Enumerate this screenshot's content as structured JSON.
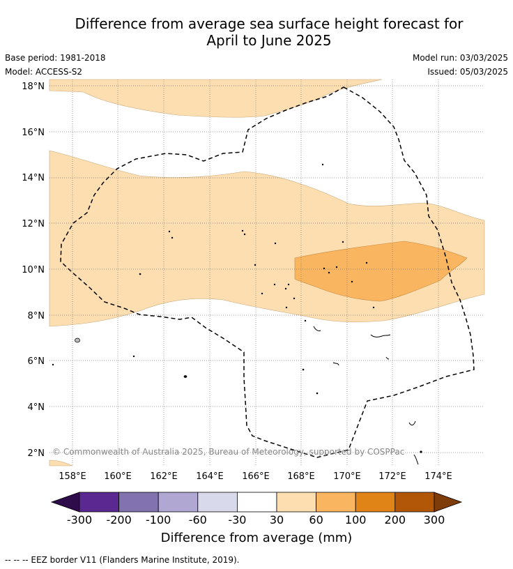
{
  "title": {
    "line1": "Difference from average sea surface height forecast for",
    "line2": "April to June 2025"
  },
  "meta": {
    "base_period": "Base period: 1981-2018",
    "model": "Model: ACCESS-S2",
    "model_run": "Model run: 03/03/2025",
    "issued": "Issued: 05/03/2025"
  },
  "map": {
    "lat_labels": [
      "18°N",
      "16°N",
      "14°N",
      "12°N",
      "10°N",
      "8°N",
      "6°N",
      "4°N",
      "2°N"
    ],
    "lon_labels": [
      "158°E",
      "160°E",
      "162°E",
      "164°E",
      "166°E",
      "168°E",
      "170°E",
      "172°E",
      "174°E"
    ],
    "credit": "© Commonwealth of Australia 2025, Bureau of Meteorology, supported by COSPPac"
  },
  "colorbar": {
    "colors": {
      "lt_-300": "#2e0b4a",
      "-300_-200": "#5a2890",
      "-200_-100": "#8372b0",
      "-100_-60": "#b0a8d2",
      "-60_-30": "#d9d9ec",
      "-30_30": "#ffffff",
      "30_60": "#fddeb1",
      "60_100": "#f9b560",
      "100_200": "#e08417",
      "200_300": "#b25708",
      "gt_300": "#7f3c0b"
    },
    "tick_labels": [
      "-300",
      "-200",
      "-100",
      "-60",
      "-30",
      "30",
      "60",
      "100",
      "200",
      "300"
    ],
    "title": "Difference from average (mm)"
  },
  "footer": {
    "legend_line": "--  --  -- EEZ border V11 (Flanders Marine Institute, 2019)."
  }
}
